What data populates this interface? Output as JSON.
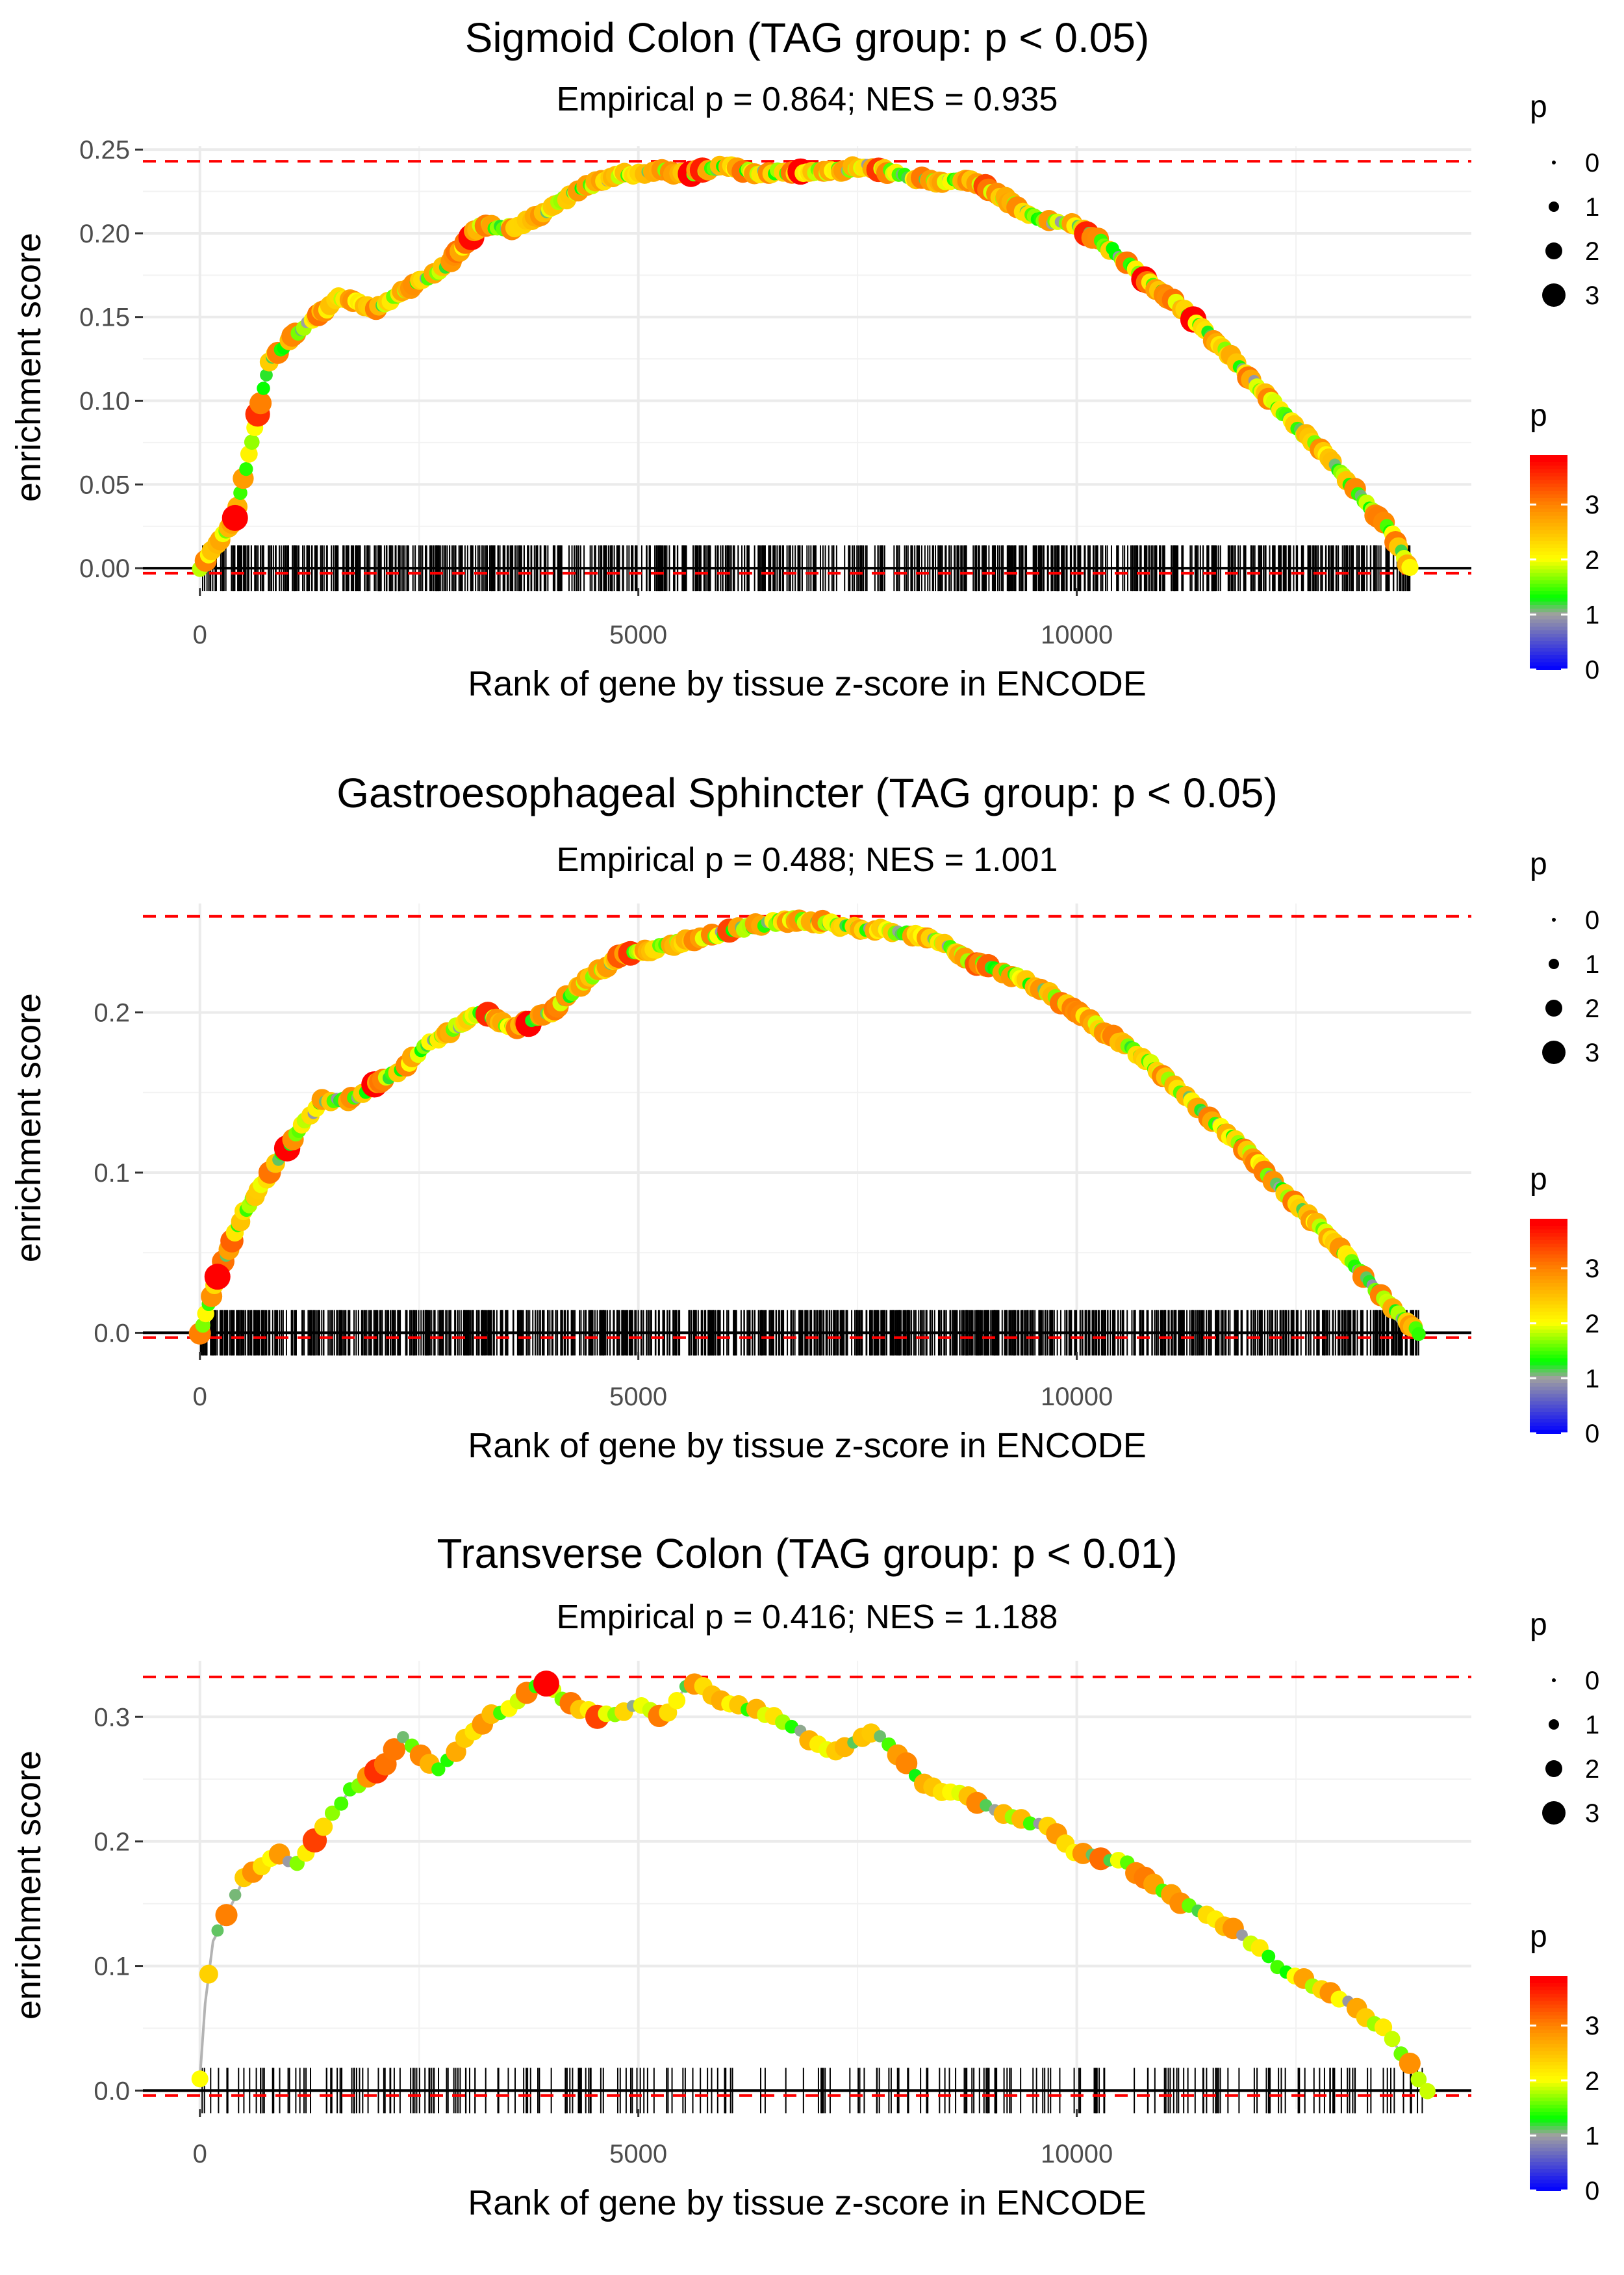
{
  "chart_data": [
    {
      "type": "line",
      "title": "Sigmoid Colon (TAG group: p < 0.05)",
      "subtitle": "Empirical p = 0.864; NES = 0.935",
      "xlabel": "Rank of gene by tissue z-score in ENCODE",
      "ylabel": "enrichment score",
      "xlim": [
        -650,
        14500
      ],
      "ylim": [
        -0.012,
        0.252
      ],
      "x_ticks": [
        0,
        5000,
        10000
      ],
      "x_tick_labels": [
        "0",
        "5000",
        "10000"
      ],
      "y_ticks": [
        0,
        0.05,
        0.1,
        0.15,
        0.2,
        0.25
      ],
      "y_tick_labels": [
        "0.00",
        "0.05",
        "0.10",
        "0.15",
        "0.20",
        "0.25"
      ],
      "max_es_line": 0.243,
      "min_es_line": -0.003,
      "rug_density": 900,
      "x": [
        0,
        400,
        800,
        1200,
        1600,
        2000,
        2400,
        2800,
        3200,
        3600,
        4000,
        4400,
        4800,
        5200,
        5600,
        6000,
        6400,
        6800,
        7200,
        7600,
        8000,
        8400,
        8800,
        9200,
        9600,
        10000,
        10400,
        10800,
        11200,
        11600,
        12000,
        12400,
        12800,
        13200,
        13600,
        13800
      ],
      "y": [
        0.0,
        0.03,
        0.125,
        0.145,
        0.162,
        0.155,
        0.168,
        0.18,
        0.205,
        0.203,
        0.215,
        0.228,
        0.235,
        0.237,
        0.236,
        0.24,
        0.236,
        0.237,
        0.237,
        0.24,
        0.235,
        0.23,
        0.232,
        0.22,
        0.207,
        0.205,
        0.19,
        0.172,
        0.155,
        0.135,
        0.112,
        0.09,
        0.07,
        0.045,
        0.02,
        0.0
      ],
      "legend_size": {
        "title": "p",
        "labels": [
          "0",
          "1",
          "2",
          "3"
        ]
      },
      "legend_color": {
        "title": "p",
        "labels": [
          "0",
          "1",
          "2",
          "3"
        ]
      }
    },
    {
      "type": "line",
      "title": "Gastroesophageal Sphincter (TAG group: p < 0.05)",
      "subtitle": "Empirical p = 0.488; NES = 1.001",
      "xlabel": "Rank of gene by tissue z-score in ENCODE",
      "ylabel": "enrichment score",
      "xlim": [
        -650,
        14500
      ],
      "ylim": [
        -0.012,
        0.268
      ],
      "x_ticks": [
        0,
        5000,
        10000
      ],
      "x_tick_labels": [
        "0",
        "5000",
        "10000"
      ],
      "y_ticks": [
        0,
        0.1,
        0.2
      ],
      "y_tick_labels": [
        "0.0",
        "0.1",
        "0.2"
      ],
      "max_es_line": 0.26,
      "min_es_line": -0.003,
      "rug_density": 1100,
      "x": [
        0,
        200,
        500,
        800,
        1100,
        1400,
        1700,
        2000,
        2300,
        2600,
        2900,
        3200,
        3600,
        4000,
        4400,
        4800,
        5200,
        5600,
        6000,
        6400,
        6800,
        7200,
        7600,
        8000,
        8400,
        8800,
        9200,
        9600,
        10000,
        10400,
        10800,
        11200,
        11600,
        12000,
        12400,
        12800,
        13200,
        13600,
        13900
      ],
      "y": [
        0.0,
        0.035,
        0.075,
        0.1,
        0.125,
        0.145,
        0.145,
        0.155,
        0.165,
        0.18,
        0.19,
        0.2,
        0.19,
        0.2,
        0.22,
        0.235,
        0.24,
        0.245,
        0.25,
        0.255,
        0.258,
        0.255,
        0.252,
        0.25,
        0.245,
        0.232,
        0.225,
        0.215,
        0.2,
        0.185,
        0.17,
        0.15,
        0.13,
        0.11,
        0.085,
        0.065,
        0.04,
        0.015,
        0.0
      ],
      "legend_size": {
        "title": "p",
        "labels": [
          "0",
          "1",
          "2",
          "3"
        ]
      },
      "legend_color": {
        "title": "p",
        "labels": [
          "0",
          "1",
          "2",
          "3"
        ]
      }
    },
    {
      "type": "line",
      "title": "Transverse Colon (TAG group: p < 0.01)",
      "subtitle": "Empirical p = 0.416; NES = 1.188",
      "xlabel": "Rank of gene by tissue z-score in ENCODE",
      "ylabel": "enrichment score",
      "xlim": [
        -650,
        14500
      ],
      "ylim": [
        -0.015,
        0.345
      ],
      "x_ticks": [
        0,
        5000,
        10000
      ],
      "x_tick_labels": [
        "0",
        "5000",
        "10000"
      ],
      "y_ticks": [
        0,
        0.1,
        0.2,
        0.3
      ],
      "y_tick_labels": [
        "0.0",
        "0.1",
        "0.2",
        "0.3"
      ],
      "max_es_line": 0.332,
      "min_es_line": -0.004,
      "rug_density": 260,
      "x": [
        0,
        60,
        150,
        300,
        500,
        700,
        900,
        1100,
        1300,
        1500,
        1700,
        1900,
        2100,
        2300,
        2700,
        3000,
        3300,
        3600,
        3900,
        4200,
        4600,
        5000,
        5300,
        5600,
        6000,
        6400,
        6800,
        7200,
        7500,
        7700,
        8200,
        8500,
        8800,
        9200,
        9700,
        10000,
        10500,
        10800,
        11100,
        11500,
        11900,
        12300,
        12700,
        13100,
        13500,
        13800,
        14000
      ],
      "y": [
        0.01,
        0.07,
        0.12,
        0.14,
        0.17,
        0.18,
        0.19,
        0.18,
        0.2,
        0.22,
        0.24,
        0.25,
        0.26,
        0.285,
        0.255,
        0.28,
        0.3,
        0.31,
        0.33,
        0.31,
        0.3,
        0.31,
        0.3,
        0.33,
        0.31,
        0.305,
        0.29,
        0.27,
        0.28,
        0.29,
        0.25,
        0.24,
        0.235,
        0.22,
        0.21,
        0.19,
        0.185,
        0.17,
        0.155,
        0.14,
        0.125,
        0.1,
        0.085,
        0.07,
        0.05,
        0.02,
        0.0
      ],
      "legend_size": {
        "title": "p",
        "labels": [
          "0",
          "1",
          "2",
          "3"
        ]
      },
      "legend_color": {
        "title": "p",
        "labels": [
          "0",
          "1",
          "2",
          "3"
        ]
      }
    }
  ]
}
